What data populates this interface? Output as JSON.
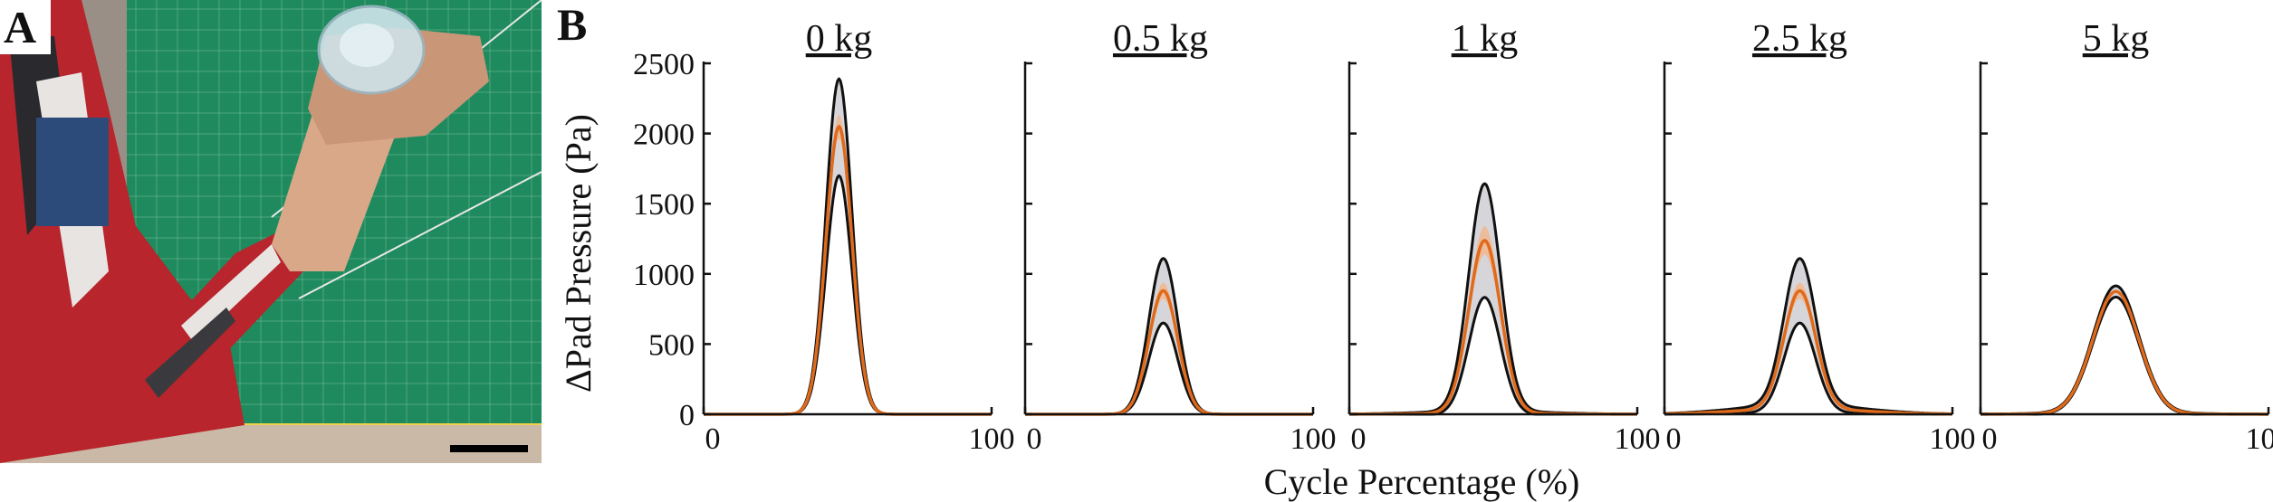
{
  "panel_labels": {
    "a": "A",
    "b": "B"
  },
  "photo": {
    "description_icon": "arm-holding-bottle-photo",
    "colors": {
      "mat": "#1f8a5e",
      "shirt_red": "#b8252c",
      "shirt_white": "#e8e4e2",
      "skin": "#d9a889",
      "wall": "#9a8f86",
      "scale_bar": "#000000"
    }
  },
  "chart_data": {
    "type": "line",
    "shared": {
      "ylabel": "ΔPad Pressure (Pa)",
      "xlabel": "Cycle Percentage (%)",
      "xlim": [
        0,
        100
      ],
      "ylim": [
        0,
        2500
      ],
      "x_ticks": [
        "0",
        "100"
      ],
      "y_ticks": [
        "0",
        "500",
        "1000",
        "1500",
        "2000",
        "2500"
      ],
      "series_colors": {
        "upper_bound": "#111111",
        "mean": "#e06a1b",
        "lower_bound": "#111111",
        "band": "#cfcfd4"
      }
    },
    "panels": [
      {
        "title": "0 kg",
        "peak_x": 47,
        "mean_peak": 2050,
        "upper_peak": 2390,
        "lower_peak": 1700,
        "width": 4.5,
        "baseline_mean": 0,
        "baseline_spread": 0
      },
      {
        "title": "0.5 kg",
        "peak_x": 48,
        "mean_peak": 880,
        "upper_peak": 1110,
        "lower_peak": 650,
        "width": 5.0,
        "baseline_mean": 0,
        "baseline_spread": 0
      },
      {
        "title": "1 kg",
        "peak_x": 47,
        "mean_peak": 1230,
        "upper_peak": 1620,
        "lower_peak": 840,
        "width": 5.5,
        "baseline_mean": 8,
        "baseline_spread": 15
      },
      {
        "title": "2.5 kg",
        "peak_x": 47,
        "mean_peak": 840,
        "upper_peak": 1040,
        "lower_peak": 640,
        "width": 5.5,
        "baseline_mean": 40,
        "baseline_spread": 30
      },
      {
        "title": "5 kg",
        "peak_x": 47,
        "mean_peak": 870,
        "upper_peak": 900,
        "lower_peak": 840,
        "width": 8.0,
        "baseline_mean": 5,
        "baseline_spread": 10
      }
    ]
  }
}
